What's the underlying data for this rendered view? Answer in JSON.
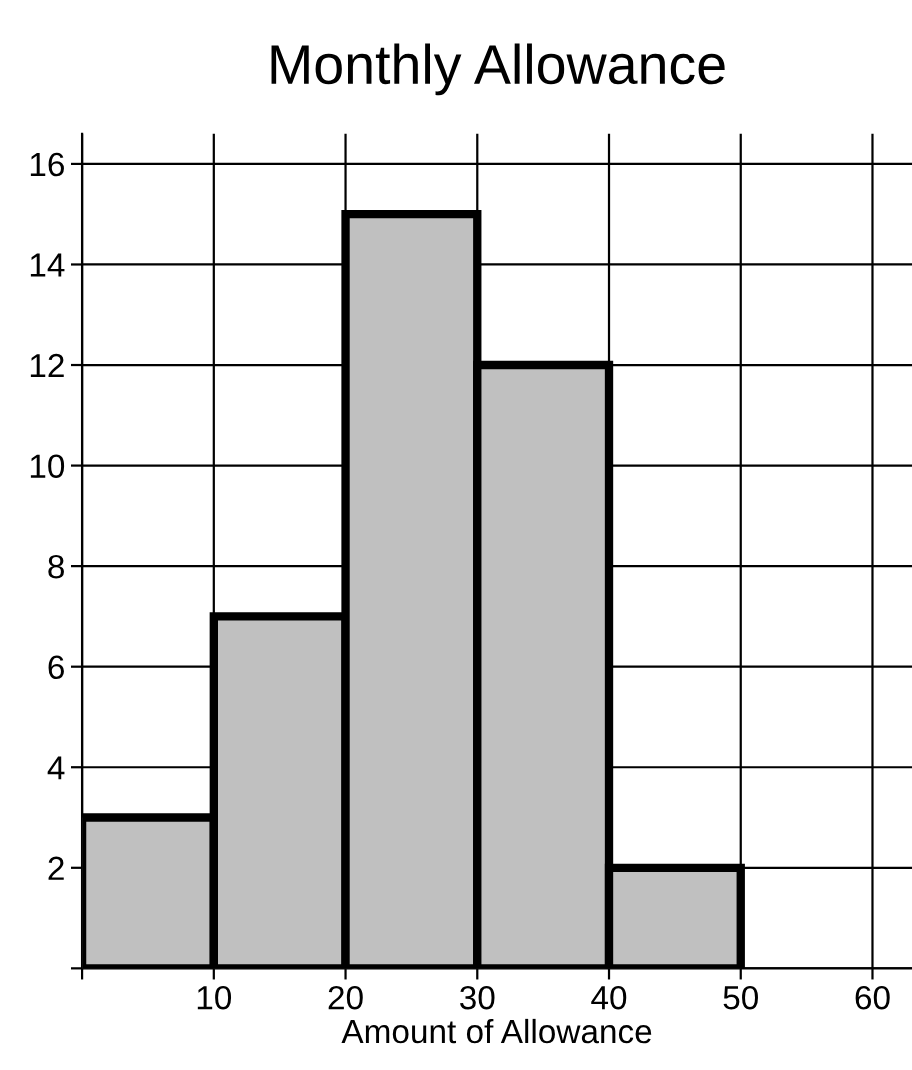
{
  "chart_data": {
    "type": "histogram",
    "title": "Monthly Allowance",
    "xlabel": "Amount of Allowance",
    "bins": [
      0,
      10,
      20,
      30,
      40,
      50
    ],
    "values": [
      3,
      7,
      15,
      12,
      2
    ],
    "color": "#c0c0c0",
    "xlim": [
      0,
      63
    ],
    "ylim": [
      0,
      16.6
    ],
    "xticks": [
      {
        "value": 0,
        "label": null
      },
      10,
      20,
      30,
      40,
      50,
      60
    ],
    "yticks": [
      {
        "value": 0,
        "label": null
      },
      2,
      4,
      6,
      8,
      10,
      12,
      14,
      16
    ],
    "grid": true
  }
}
